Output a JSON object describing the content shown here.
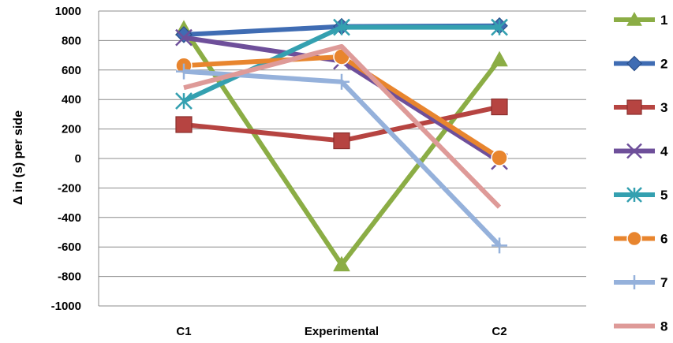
{
  "chart_data": {
    "type": "line",
    "categories": [
      "C1",
      "Experimental",
      "C2"
    ],
    "ylabel": "Δ in (s) per side",
    "ylim": [
      -1000,
      1000
    ],
    "yticks": [
      1000,
      800,
      600,
      400,
      200,
      0,
      -200,
      -400,
      -600,
      -800,
      -1000
    ],
    "grid": "horizontal",
    "legend_position": "right",
    "series": [
      {
        "name": "1",
        "color": "#8BAD45",
        "marker": "triangle",
        "values": [
          880,
          -720,
          670
        ]
      },
      {
        "name": "2",
        "color": "#3F6CB3",
        "marker": "diamond",
        "values": [
          840,
          895,
          900
        ]
      },
      {
        "name": "3",
        "color": "#B64441",
        "marker": "square",
        "values": [
          230,
          120,
          350
        ]
      },
      {
        "name": "4",
        "color": "#6E4F9A",
        "marker": "x",
        "values": [
          820,
          660,
          -20
        ]
      },
      {
        "name": "5",
        "color": "#34A0B0",
        "marker": "asterisk",
        "values": [
          390,
          890,
          890
        ]
      },
      {
        "name": "6",
        "color": "#E8852E",
        "marker": "circle",
        "values": [
          630,
          690,
          5
        ]
      },
      {
        "name": "7",
        "color": "#95B1DB",
        "marker": "plus",
        "values": [
          590,
          520,
          -590
        ]
      },
      {
        "name": "8",
        "color": "#DE9A98",
        "marker": "none",
        "values": [
          480,
          760,
          -330
        ]
      }
    ]
  }
}
